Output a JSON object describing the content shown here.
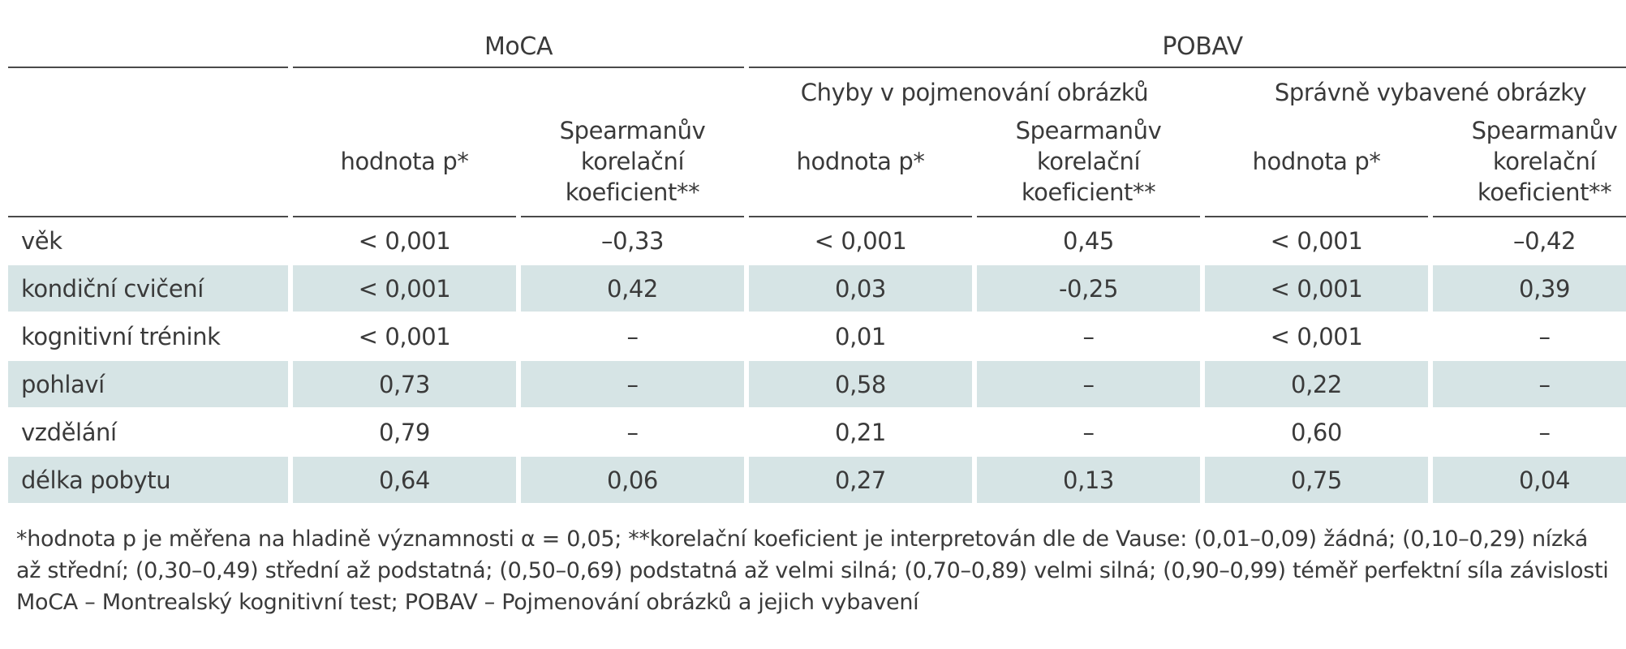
{
  "table": {
    "group_headers": {
      "moca": "MoCA",
      "pobav": "POBAV"
    },
    "sub_headers": {
      "chyby": "Chyby v pojmenování obrázků",
      "spravne": "Správně vybavené obrázky"
    },
    "column_headers": {
      "p_value": "hodnota p*",
      "spearman_line1": "Spearmanův",
      "spearman_line2": "korelační",
      "spearman_line3": "koeficient**"
    },
    "rows": [
      {
        "label": "věk",
        "values": [
          "< 0,001",
          "–0,33",
          "< 0,001",
          "0,45",
          "< 0,001",
          "–0,42"
        ]
      },
      {
        "label": "kondiční cvičení",
        "values": [
          "< 0,001",
          "0,42",
          "0,03",
          "-0,25",
          "< 0,001",
          "0,39"
        ]
      },
      {
        "label": "kognitivní trénink",
        "values": [
          "< 0,001",
          "–",
          "0,01",
          "–",
          "< 0,001",
          "–"
        ]
      },
      {
        "label": "pohlaví",
        "values": [
          "0,73",
          "–",
          "0,58",
          "–",
          "0,22",
          "–"
        ]
      },
      {
        "label": "vzdělání",
        "values": [
          "0,79",
          "–",
          "0,21",
          "–",
          "0,60",
          "–"
        ]
      },
      {
        "label": "délka pobytu",
        "values": [
          "0,64",
          "0,06",
          "0,27",
          "0,13",
          "0,75",
          "0,04"
        ]
      }
    ],
    "shade_color": "#d6e4e5"
  },
  "footnotes": {
    "line1": "*hodnota p je měřena na hladině významnosti α = 0,05; **korelační koeficient je interpretován dle de Vause: (0,01–0,09) žádná; (0,10–0,29) nízká",
    "line2": "až střední; (0,30–0,49) střední až podstatná; (0,50–0,69) podstatná až velmi silná; (0,70–0,89) velmi silná; (0,90–0,99) téměř perfektní síla závislosti",
    "line3": "MoCA – Montrealský kognitivní test; POBAV – Pojmenování obrázků a jejich vybavení"
  }
}
